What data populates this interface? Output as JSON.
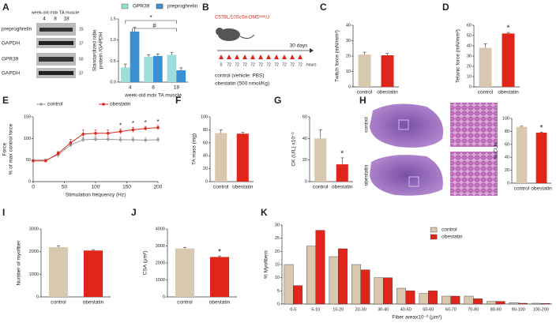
{
  "panels": [
    "A",
    "B",
    "C",
    "D",
    "E",
    "F",
    "G",
    "H",
    "I",
    "J",
    "K"
  ],
  "blot": {
    "title": "week-old mdx TA muscle",
    "lanes": [
      "4",
      "8",
      "18"
    ],
    "rows": [
      {
        "label": "preproghrelin",
        "kda": "15"
      },
      {
        "label": "GAPDH",
        "kda": "37"
      },
      {
        "label": "GPR39",
        "kda": "50"
      },
      {
        "label": "GAPDH",
        "kda": "37"
      }
    ]
  },
  "schematic": {
    "strain": "C57BL/10ScSn-DMDᵐᵈˣ/J",
    "duration": "30 days",
    "times": [
      "0",
      "72",
      "72",
      "72",
      "72",
      "72",
      "72",
      "72",
      "72",
      "72",
      "72"
    ],
    "unit": "hours",
    "control": "control (vehicle: PBS)",
    "treatment": "obestatin (500 nmol/Kg)"
  },
  "histology": {
    "rows": [
      "control",
      "obestatin"
    ]
  },
  "chart_data": [
    {
      "type": "bar",
      "categories": [
        "4",
        "8",
        "18"
      ],
      "xlabel": "week-old mdx TA muscle",
      "ylabel": [
        "Standardized ratio",
        "protein /GAPDH"
      ],
      "series": [
        {
          "name": "GPR39",
          "color": "#9fdcdc",
          "values": [
            0.35,
            0.6,
            0.65
          ],
          "errors": [
            0.08,
            0.05,
            0.05
          ]
        },
        {
          "name": "preproghrelin",
          "color": "#3b8fd3",
          "values": [
            1.2,
            0.62,
            0.28
          ],
          "errors": [
            0.1,
            0.05,
            0.06
          ]
        }
      ],
      "ylim": [
        0,
        1.5
      ],
      "yticks": [
        {
          "value": 0,
          "label": "0.0"
        },
        0.5,
        {
          "value": 1,
          "label": "1.0"
        },
        1.5
      ],
      "legend": "top",
      "annotations": [
        "*",
        "#"
      ]
    },
    {
      "type": "bar",
      "categories": [
        "control",
        "obestatin"
      ],
      "values": [
        21,
        20.5
      ],
      "errors": [
        1.5,
        1.2
      ],
      "colors": [
        "#d9c8b0",
        "#e0261b"
      ],
      "ylabel": "Twitch force (mN/mm²)",
      "ylim": [
        0,
        40
      ],
      "yticks": [
        0,
        10,
        20,
        30,
        40
      ]
    },
    {
      "type": "bar",
      "categories": [
        "control",
        "obestatin"
      ],
      "values": [
        38,
        52
      ],
      "errors": [
        4,
        1
      ],
      "colors": [
        "#d9c8b0",
        "#e0261b"
      ],
      "ylabel": "Tetanic force (mN/mm²)",
      "ylim": [
        0,
        60
      ],
      "yticks": [
        0,
        10,
        20,
        30,
        40,
        50,
        60
      ],
      "significance": [
        null,
        "*"
      ]
    },
    {
      "type": "line",
      "x": [
        0,
        20,
        40,
        60,
        80,
        100,
        120,
        140,
        160,
        180,
        200
      ],
      "xlabel": "Stimulation frequency (Hz)",
      "ylabel": [
        "Force",
        "% of max control force"
      ],
      "series": [
        {
          "name": "control",
          "color": "#9a9a9a",
          "values": [
            50,
            50,
            62,
            85,
            97,
            98,
            98,
            97,
            97,
            96,
            97
          ],
          "errors": [
            0,
            0,
            8,
            6,
            5,
            5,
            5,
            6,
            6,
            5,
            5
          ]
        },
        {
          "name": "obestatin",
          "color": "#e0261b",
          "values": [
            48,
            48,
            65,
            90,
            110,
            112,
            112,
            116,
            120,
            123,
            125
          ],
          "errors": [
            0,
            0,
            4,
            8,
            10,
            8,
            8,
            6,
            6,
            5,
            5
          ]
        }
      ],
      "xlim": [
        0,
        200
      ],
      "xticks": [
        0,
        50,
        100,
        150,
        200
      ],
      "ylim": [
        0,
        150
      ],
      "yticks": [
        0,
        50,
        100,
        150
      ],
      "legend": "top",
      "significance": [
        null,
        null,
        null,
        null,
        null,
        null,
        null,
        "*",
        "*",
        "*",
        "*"
      ]
    },
    {
      "type": "bar",
      "categories": [
        "control",
        "obestatin"
      ],
      "values": [
        75,
        74
      ],
      "errors": [
        5,
        2
      ],
      "colors": [
        "#d9c8b0",
        "#e0261b"
      ],
      "ylabel": "TA mass (mg)",
      "ylim": [
        0,
        100
      ],
      "yticks": [
        0,
        20,
        40,
        60,
        80,
        100
      ]
    },
    {
      "type": "bar",
      "categories": [
        "control",
        "obestatin"
      ],
      "values": [
        40,
        16
      ],
      "errors": [
        8,
        6
      ],
      "colors": [
        "#d9c8b0",
        "#e0261b"
      ],
      "ylabel": "CK (U/L) x10⁻²",
      "ylim": [
        0,
        60
      ],
      "yticks": [
        0,
        20,
        40,
        60
      ],
      "significance": [
        null,
        "*"
      ]
    },
    {
      "type": "bar",
      "categories": [
        "control",
        "obestatin"
      ],
      "values": [
        87,
        78
      ],
      "errors": [
        1,
        1
      ],
      "colors": [
        "#d9c8b0",
        "#e0261b"
      ],
      "ylabel": "% CLN",
      "ylim": [
        0,
        100
      ],
      "yticks": [
        0,
        20,
        40,
        60,
        80,
        100
      ],
      "significance": [
        null,
        "*"
      ]
    },
    {
      "type": "bar",
      "categories": [
        "control",
        "obestatin"
      ],
      "values": [
        2200,
        2050
      ],
      "errors": [
        60,
        40
      ],
      "colors": [
        "#d9c8b0",
        "#e0261b"
      ],
      "ylabel": "Number of myofiber",
      "ylim": [
        0,
        3000
      ],
      "yticks": [
        0,
        1000,
        2000,
        3000
      ]
    },
    {
      "type": "bar",
      "categories": [
        "control",
        "obestatin"
      ],
      "values": [
        2850,
        2350
      ],
      "errors": [
        70,
        60
      ],
      "colors": [
        "#d9c8b0",
        "#e0261b"
      ],
      "ylabel": "CSA (µm²)",
      "ylim": [
        0,
        4000
      ],
      "yticks": [
        0,
        1000,
        2000,
        3000,
        4000
      ],
      "significance": [
        null,
        "*"
      ]
    },
    {
      "type": "bar",
      "categories": [
        "0-5",
        "5-10",
        "10-20",
        "20-30",
        "30-40",
        "40-50",
        "50-60",
        "60-70",
        "70-80",
        "80-90",
        "90-100",
        "100-200"
      ],
      "xlabel": "Fiber areax10⁻² (µm²)",
      "ylabel": "% Myofibers",
      "series": [
        {
          "name": "control",
          "color": "#d9c8b0",
          "values": [
            15,
            22,
            18,
            15,
            10,
            6,
            4,
            3,
            3,
            1,
            0.5,
            0.3
          ]
        },
        {
          "name": "obestatin",
          "color": "#e0261b",
          "values": [
            7,
            28,
            21,
            13,
            10,
            5,
            5,
            3,
            2,
            1,
            0.3,
            0.2
          ]
        }
      ],
      "ylim": [
        0,
        30
      ],
      "yticks": [
        0,
        5,
        10,
        15,
        20,
        25,
        30
      ],
      "legend": "top-right"
    }
  ]
}
